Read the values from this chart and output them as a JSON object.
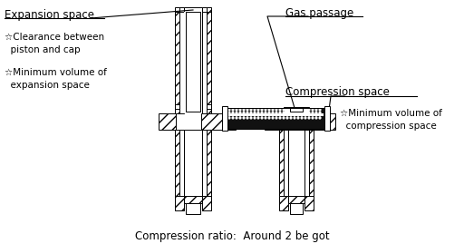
{
  "bg_color": "#ffffff",
  "line_color": "#000000",
  "label_expansion": "Expansion space",
  "label_gas": "Gas passage",
  "label_compression": "Compression space",
  "label_clearance": "☆Clearance between\n  piston and cap",
  "label_min_exp": "☆Minimum volume of\n  expansion space",
  "label_min_comp": "☆Minimum volume of\n  compression space",
  "title_bottom": "Compression ratio:  Around 2 be got",
  "figsize": [
    5.12,
    2.69
  ],
  "dpi": 100
}
